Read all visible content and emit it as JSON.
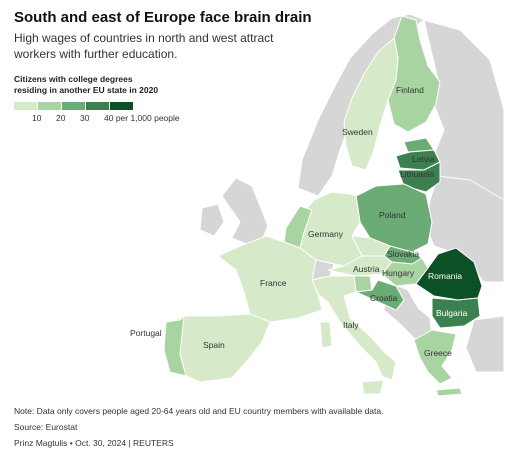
{
  "header": {
    "title": "South and east of Europe face brain drain",
    "subtitle": "High wages of countries in north and west attract workers with further education."
  },
  "legend": {
    "title_line1": "Citizens with college degrees",
    "title_line2": "residing in another EU state in 2020",
    "ticks": [
      "10",
      "20",
      "30",
      "40 per 1,000 people"
    ],
    "colors": [
      "#d6e9c8",
      "#a8d4a2",
      "#6bab75",
      "#3d8050",
      "#0c5126"
    ]
  },
  "map_colors": {
    "non_eu": "#d6d6d6",
    "border": "#ffffff",
    "label_dark": "#333333",
    "label_light": "#ffffff"
  },
  "countries": {
    "finland": {
      "label": "Finland",
      "color": "#a8d4a2"
    },
    "sweden": {
      "label": "Sweden",
      "color": "#d6e9c8"
    },
    "latvia": {
      "label": "Latvia",
      "color": "#3d8050"
    },
    "lithuania": {
      "label": "Lithuania",
      "color": "#3d8050"
    },
    "estonia": {
      "label": "",
      "color": "#6bab75"
    },
    "poland": {
      "label": "Poland",
      "color": "#6bab75"
    },
    "germany": {
      "label": "Germany",
      "color": "#d6e9c8"
    },
    "netherlands_belgium": {
      "label": "",
      "color": "#a8d4a2"
    },
    "france": {
      "label": "France",
      "color": "#d6e9c8"
    },
    "austria": {
      "label": "Austria",
      "color": "#d6e9c8"
    },
    "slovakia": {
      "label": "Slovakia",
      "color": "#6bab75"
    },
    "hungary": {
      "label": "Hungary",
      "color": "#a8d4a2"
    },
    "czechia": {
      "label": "",
      "color": "#d6e9c8"
    },
    "romania": {
      "label": "Romania",
      "color": "#0c5126"
    },
    "bulgaria": {
      "label": "Bulgaria",
      "color": "#3d8050"
    },
    "croatia": {
      "label": "Croatia",
      "color": "#6bab75"
    },
    "slovenia": {
      "label": "",
      "color": "#a8d4a2"
    },
    "italy": {
      "label": "Italy",
      "color": "#d6e9c8"
    },
    "portugal": {
      "label": "Portugal",
      "color": "#a8d4a2"
    },
    "spain": {
      "label": "Spain",
      "color": "#d6e9c8"
    },
    "greece": {
      "label": "Greece",
      "color": "#a8d4a2"
    }
  },
  "footer": {
    "note": "Note: Data only covers people aged 20-64 years old and EU country members with available data.",
    "source": "Source: Eurostat",
    "credit": "Prinz Magtulis • Oct. 30, 2024 | REUTERS"
  }
}
